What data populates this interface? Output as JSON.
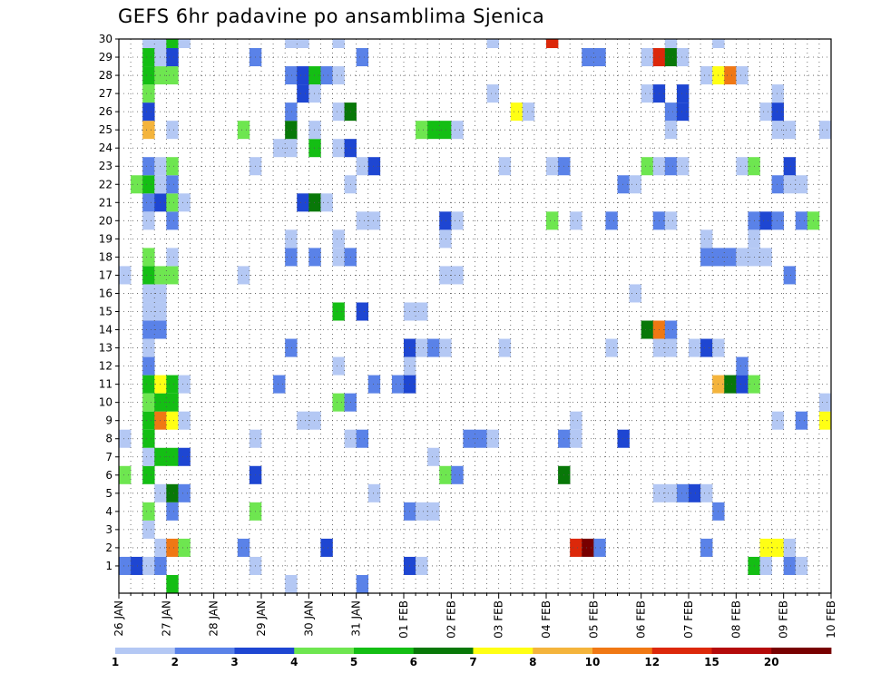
{
  "chart_data": {
    "type": "heatmap",
    "title": "GEFS 6hr padavine po ansamblima Sjenica",
    "x_ticks": [
      "26 JAN",
      "27 JAN",
      "28 JAN",
      "29 JAN",
      "30 JAN",
      "31 JAN",
      "01 FEB",
      "02 FEB",
      "03 FEB",
      "04 FEB",
      "05 FEB",
      "06 FEB",
      "07 FEB",
      "08 FEB",
      "09 FEB",
      "10 FEB"
    ],
    "y_ticks": [
      1,
      2,
      3,
      4,
      5,
      6,
      7,
      8,
      9,
      10,
      11,
      12,
      13,
      14,
      15,
      16,
      17,
      18,
      19,
      20,
      21,
      22,
      23,
      24,
      25,
      26,
      27,
      28,
      29,
      30
    ],
    "ylim": [
      0,
      30
    ],
    "time_steps": 60,
    "time_step_hours": 6,
    "grid": true,
    "colorbar": {
      "labels": [
        "1",
        "2",
        "3",
        "4",
        "5",
        "6",
        "7",
        "8",
        "10",
        "12",
        "15",
        "20"
      ],
      "colors": [
        "#b4c8f4",
        "#5a82e8",
        "#1e46d2",
        "#6ee650",
        "#14be14",
        "#087808",
        "#ffff14",
        "#f4b43c",
        "#f07814",
        "#dc280a",
        "#b40a0a",
        "#780000"
      ]
    },
    "cells": [
      [
        0,
        1,
        2
      ],
      [
        1,
        1,
        3
      ],
      [
        2,
        1,
        1
      ],
      [
        3,
        1,
        2
      ],
      [
        11,
        1,
        1
      ],
      [
        24,
        1,
        3
      ],
      [
        25,
        1,
        1
      ],
      [
        53,
        1,
        5
      ],
      [
        54,
        1,
        1
      ],
      [
        56,
        1,
        2
      ],
      [
        57,
        1,
        1
      ],
      [
        3,
        2,
        1
      ],
      [
        4,
        2,
        9
      ],
      [
        5,
        2,
        4
      ],
      [
        10,
        2,
        2
      ],
      [
        17,
        2,
        3
      ],
      [
        38,
        2,
        10
      ],
      [
        39,
        2,
        12
      ],
      [
        40,
        2,
        2
      ],
      [
        49,
        2,
        2
      ],
      [
        54,
        2,
        7
      ],
      [
        55,
        2,
        7
      ],
      [
        56,
        2,
        1
      ],
      [
        2,
        3,
        1
      ],
      [
        2,
        4,
        4
      ],
      [
        4,
        4,
        2
      ],
      [
        11,
        4,
        4
      ],
      [
        24,
        4,
        2
      ],
      [
        25,
        4,
        1
      ],
      [
        26,
        4,
        1
      ],
      [
        50,
        4,
        2
      ],
      [
        3,
        5,
        1
      ],
      [
        4,
        5,
        6
      ],
      [
        5,
        5,
        2
      ],
      [
        21,
        5,
        1
      ],
      [
        45,
        5,
        1
      ],
      [
        46,
        5,
        1
      ],
      [
        47,
        5,
        2
      ],
      [
        48,
        5,
        3
      ],
      [
        49,
        5,
        1
      ],
      [
        0,
        6,
        4
      ],
      [
        2,
        6,
        5
      ],
      [
        11,
        6,
        3
      ],
      [
        27,
        6,
        4
      ],
      [
        28,
        6,
        2
      ],
      [
        37,
        6,
        6
      ],
      [
        2,
        7,
        1
      ],
      [
        3,
        7,
        5
      ],
      [
        4,
        7,
        5
      ],
      [
        5,
        7,
        3
      ],
      [
        26,
        7,
        1
      ],
      [
        0,
        8,
        1
      ],
      [
        2,
        8,
        5
      ],
      [
        11,
        8,
        1
      ],
      [
        19,
        8,
        1
      ],
      [
        20,
        8,
        2
      ],
      [
        29,
        8,
        2
      ],
      [
        30,
        8,
        2
      ],
      [
        31,
        8,
        1
      ],
      [
        37,
        8,
        2
      ],
      [
        38,
        8,
        1
      ],
      [
        42,
        8,
        3
      ],
      [
        2,
        9,
        5
      ],
      [
        3,
        9,
        9
      ],
      [
        4,
        9,
        7
      ],
      [
        5,
        9,
        1
      ],
      [
        15,
        9,
        1
      ],
      [
        16,
        9,
        1
      ],
      [
        38,
        9,
        1
      ],
      [
        55,
        9,
        1
      ],
      [
        57,
        9,
        2
      ],
      [
        59,
        9,
        7
      ],
      [
        2,
        10,
        4
      ],
      [
        3,
        10,
        5
      ],
      [
        4,
        10,
        5
      ],
      [
        18,
        10,
        4
      ],
      [
        19,
        10,
        2
      ],
      [
        59,
        10,
        1
      ],
      [
        2,
        11,
        5
      ],
      [
        3,
        11,
        7
      ],
      [
        4,
        11,
        5
      ],
      [
        5,
        11,
        1
      ],
      [
        13,
        11,
        2
      ],
      [
        21,
        11,
        2
      ],
      [
        23,
        11,
        2
      ],
      [
        24,
        11,
        3
      ],
      [
        50,
        11,
        8
      ],
      [
        51,
        11,
        6
      ],
      [
        52,
        11,
        3
      ],
      [
        53,
        11,
        4
      ],
      [
        2,
        12,
        2
      ],
      [
        18,
        12,
        1
      ],
      [
        24,
        12,
        1
      ],
      [
        52,
        12,
        2
      ],
      [
        2,
        13,
        1
      ],
      [
        14,
        13,
        2
      ],
      [
        24,
        13,
        3
      ],
      [
        25,
        13,
        1
      ],
      [
        26,
        13,
        2
      ],
      [
        27,
        13,
        1
      ],
      [
        32,
        13,
        1
      ],
      [
        41,
        13,
        1
      ],
      [
        45,
        13,
        1
      ],
      [
        46,
        13,
        1
      ],
      [
        48,
        13,
        1
      ],
      [
        49,
        13,
        3
      ],
      [
        50,
        13,
        1
      ],
      [
        2,
        14,
        2
      ],
      [
        3,
        14,
        2
      ],
      [
        44,
        14,
        6
      ],
      [
        45,
        14,
        9
      ],
      [
        46,
        14,
        2
      ],
      [
        2,
        15,
        1
      ],
      [
        3,
        15,
        1
      ],
      [
        18,
        15,
        5
      ],
      [
        20,
        15,
        3
      ],
      [
        24,
        15,
        1
      ],
      [
        25,
        15,
        1
      ],
      [
        2,
        16,
        1
      ],
      [
        3,
        16,
        1
      ],
      [
        43,
        16,
        1
      ],
      [
        0,
        17,
        1
      ],
      [
        2,
        17,
        5
      ],
      [
        3,
        17,
        4
      ],
      [
        4,
        17,
        4
      ],
      [
        10,
        17,
        1
      ],
      [
        27,
        17,
        1
      ],
      [
        28,
        17,
        1
      ],
      [
        56,
        17,
        2
      ],
      [
        2,
        18,
        4
      ],
      [
        4,
        18,
        1
      ],
      [
        14,
        18,
        2
      ],
      [
        16,
        18,
        2
      ],
      [
        18,
        18,
        1
      ],
      [
        19,
        18,
        2
      ],
      [
        49,
        18,
        2
      ],
      [
        50,
        18,
        2
      ],
      [
        51,
        18,
        2
      ],
      [
        52,
        18,
        1
      ],
      [
        53,
        18,
        1
      ],
      [
        54,
        18,
        1
      ],
      [
        14,
        19,
        1
      ],
      [
        18,
        19,
        1
      ],
      [
        27,
        19,
        1
      ],
      [
        49,
        19,
        1
      ],
      [
        53,
        19,
        1
      ],
      [
        2,
        20,
        1
      ],
      [
        4,
        20,
        2
      ],
      [
        20,
        20,
        1
      ],
      [
        21,
        20,
        1
      ],
      [
        27,
        20,
        3
      ],
      [
        28,
        20,
        1
      ],
      [
        36,
        20,
        4
      ],
      [
        38,
        20,
        1
      ],
      [
        41,
        20,
        2
      ],
      [
        45,
        20,
        2
      ],
      [
        46,
        20,
        1
      ],
      [
        53,
        20,
        2
      ],
      [
        54,
        20,
        3
      ],
      [
        55,
        20,
        2
      ],
      [
        57,
        20,
        2
      ],
      [
        58,
        20,
        4
      ],
      [
        2,
        21,
        2
      ],
      [
        3,
        21,
        3
      ],
      [
        4,
        21,
        4
      ],
      [
        5,
        21,
        1
      ],
      [
        15,
        21,
        3
      ],
      [
        16,
        21,
        6
      ],
      [
        17,
        21,
        1
      ],
      [
        1,
        22,
        4
      ],
      [
        2,
        22,
        5
      ],
      [
        3,
        22,
        1
      ],
      [
        4,
        22,
        2
      ],
      [
        19,
        22,
        1
      ],
      [
        42,
        22,
        2
      ],
      [
        43,
        22,
        1
      ],
      [
        55,
        22,
        2
      ],
      [
        56,
        22,
        1
      ],
      [
        57,
        22,
        1
      ],
      [
        2,
        23,
        2
      ],
      [
        3,
        23,
        1
      ],
      [
        4,
        23,
        4
      ],
      [
        11,
        23,
        1
      ],
      [
        20,
        23,
        1
      ],
      [
        21,
        23,
        3
      ],
      [
        32,
        23,
        1
      ],
      [
        36,
        23,
        1
      ],
      [
        37,
        23,
        2
      ],
      [
        44,
        23,
        4
      ],
      [
        45,
        23,
        1
      ],
      [
        46,
        23,
        2
      ],
      [
        47,
        23,
        1
      ],
      [
        52,
        23,
        1
      ],
      [
        53,
        23,
        4
      ],
      [
        56,
        23,
        3
      ],
      [
        13,
        24,
        1
      ],
      [
        14,
        24,
        1
      ],
      [
        16,
        24,
        5
      ],
      [
        18,
        24,
        1
      ],
      [
        19,
        24,
        3
      ],
      [
        2,
        25,
        8
      ],
      [
        4,
        25,
        1
      ],
      [
        10,
        25,
        4
      ],
      [
        14,
        25,
        6
      ],
      [
        16,
        25,
        1
      ],
      [
        25,
        25,
        4
      ],
      [
        26,
        25,
        5
      ],
      [
        27,
        25,
        5
      ],
      [
        28,
        25,
        1
      ],
      [
        46,
        25,
        1
      ],
      [
        55,
        25,
        1
      ],
      [
        56,
        25,
        1
      ],
      [
        59,
        25,
        1
      ],
      [
        2,
        26,
        3
      ],
      [
        14,
        26,
        2
      ],
      [
        18,
        26,
        1
      ],
      [
        19,
        26,
        6
      ],
      [
        33,
        26,
        7
      ],
      [
        34,
        26,
        1
      ],
      [
        46,
        26,
        2
      ],
      [
        47,
        26,
        3
      ],
      [
        54,
        26,
        1
      ],
      [
        55,
        26,
        3
      ],
      [
        2,
        27,
        4
      ],
      [
        15,
        27,
        3
      ],
      [
        16,
        27,
        1
      ],
      [
        31,
        27,
        1
      ],
      [
        44,
        27,
        1
      ],
      [
        45,
        27,
        3
      ],
      [
        47,
        27,
        3
      ],
      [
        55,
        27,
        1
      ],
      [
        2,
        28,
        5
      ],
      [
        3,
        28,
        4
      ],
      [
        4,
        28,
        4
      ],
      [
        14,
        28,
        2
      ],
      [
        15,
        28,
        3
      ],
      [
        16,
        28,
        5
      ],
      [
        17,
        28,
        2
      ],
      [
        18,
        28,
        1
      ],
      [
        49,
        28,
        1
      ],
      [
        50,
        28,
        7
      ],
      [
        51,
        28,
        9
      ],
      [
        52,
        28,
        1
      ],
      [
        2,
        29,
        5
      ],
      [
        3,
        29,
        1
      ],
      [
        4,
        29,
        3
      ],
      [
        11,
        29,
        2
      ],
      [
        20,
        29,
        2
      ],
      [
        39,
        29,
        2
      ],
      [
        40,
        29,
        2
      ],
      [
        44,
        29,
        1
      ],
      [
        45,
        29,
        10
      ],
      [
        46,
        29,
        6
      ],
      [
        47,
        29,
        1
      ],
      [
        2,
        30,
        1
      ],
      [
        3,
        30,
        1
      ],
      [
        4,
        30,
        5
      ],
      [
        5,
        30,
        1
      ],
      [
        14,
        30,
        1
      ],
      [
        15,
        30,
        1
      ],
      [
        18,
        30,
        1
      ],
      [
        31,
        30,
        1
      ],
      [
        36,
        30,
        10
      ],
      [
        46,
        30,
        1
      ],
      [
        50,
        30,
        1
      ],
      [
        4,
        0,
        5
      ],
      [
        14,
        0,
        1
      ],
      [
        20,
        0,
        2
      ]
    ]
  }
}
